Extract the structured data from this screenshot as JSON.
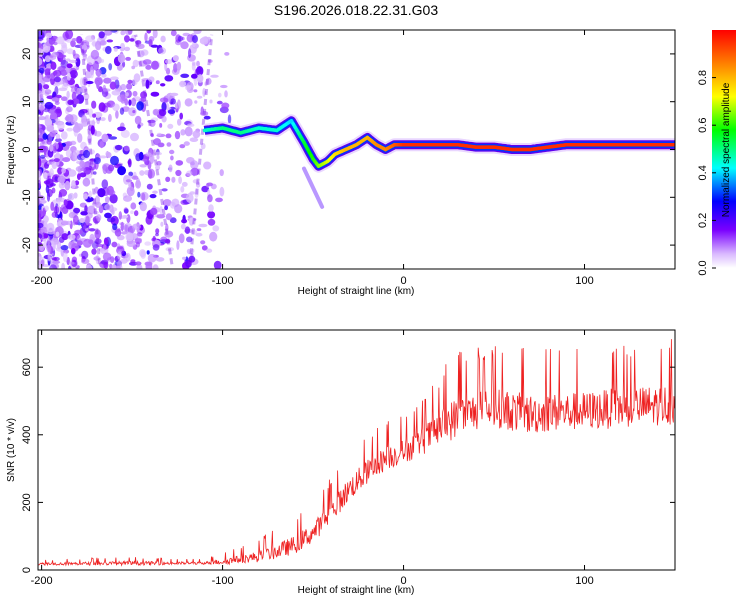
{
  "title": "S196.2026.018.22.31.G03",
  "chart_data": [
    {
      "type": "heatmap",
      "xlabel": "Height of straight line (km)",
      "ylabel": "Frequency (Hz)",
      "xlim": [
        -202,
        150
      ],
      "ylim": [
        -25,
        25
      ],
      "xticks": [
        -200,
        -100,
        0,
        100
      ],
      "yticks": [
        20,
        10,
        0,
        -10,
        -20
      ],
      "colorbar": {
        "label": "Normalized spectral amplitude",
        "range": [
          0,
          1
        ],
        "ticks": [
          0.0,
          0.2,
          0.4,
          0.6,
          0.8
        ]
      },
      "track": {
        "x": [
          -110,
          -100,
          -90,
          -80,
          -70,
          -62,
          -55,
          -50,
          -47,
          -42,
          -38,
          -32,
          -26,
          -20,
          -15,
          -10,
          -5,
          0,
          10,
          20,
          30,
          40,
          50,
          60,
          70,
          80,
          90,
          100,
          110,
          120,
          130,
          140,
          150
        ],
        "y": [
          4,
          4.5,
          3.5,
          4.5,
          4,
          6,
          1.5,
          -2,
          -3.5,
          -2.5,
          -1,
          0,
          1,
          2.5,
          1,
          0,
          1,
          1,
          1,
          1,
          1,
          0.5,
          0.5,
          0,
          0,
          0.5,
          1,
          1,
          1,
          1,
          1,
          1,
          1
        ],
        "amplitude": [
          0.45,
          0.5,
          0.5,
          0.45,
          0.45,
          0.4,
          0.55,
          0.6,
          0.65,
          0.7,
          0.75,
          0.8,
          0.8,
          0.8,
          0.85,
          0.85,
          0.9,
          0.95,
          0.95,
          0.95,
          0.95,
          0.95,
          0.95,
          0.95,
          0.95,
          0.95,
          0.95,
          0.95,
          0.95,
          0.95,
          0.95,
          0.95,
          0.95
        ]
      }
    },
    {
      "type": "line",
      "xlabel": "Height of straight line (km)",
      "ylabel": "SNR (10 * v/v)",
      "xlim": [
        -202,
        150
      ],
      "ylim": [
        0,
        710
      ],
      "xticks": [
        -200,
        -100,
        0,
        100
      ],
      "yticks": [
        0,
        200,
        400,
        600
      ],
      "color": "#ee2222",
      "envelope": {
        "x": [
          -202,
          -150,
          -110,
          -100,
          -90,
          -80,
          -70,
          -60,
          -50,
          -40,
          -30,
          -20,
          -10,
          0,
          10,
          20,
          25,
          30,
          40,
          50,
          60,
          70,
          80,
          100,
          120,
          150
        ],
        "baseline": [
          18,
          20,
          20,
          25,
          32,
          40,
          55,
          75,
          110,
          170,
          240,
          290,
          330,
          350,
          380,
          420,
          440,
          450,
          470,
          480,
          470,
          460,
          465,
          470,
          480,
          490
        ],
        "peak": [
          30,
          40,
          32,
          55,
          70,
          95,
          130,
          165,
          210,
          275,
          360,
          410,
          450,
          470,
          520,
          580,
          640,
          650,
          660,
          670,
          670,
          660,
          655,
          660,
          680,
          690
        ]
      }
    }
  ]
}
